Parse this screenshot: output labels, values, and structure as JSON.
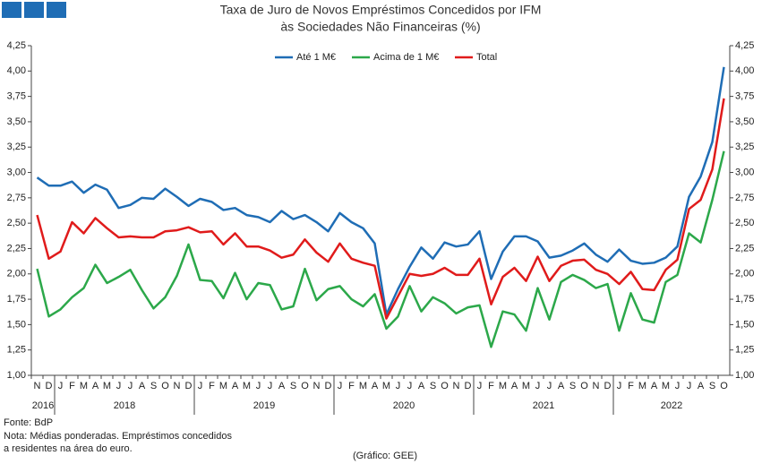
{
  "chart_data": {
    "type": "line",
    "title": "Taxa de Juro de Novos Empréstimos Concedidos por IFM",
    "subtitle": "às Sociedades Não Financeiras (%)",
    "categories": [
      "N",
      "D",
      "J",
      "F",
      "M",
      "A",
      "M",
      "J",
      "J",
      "A",
      "S",
      "O",
      "N",
      "D",
      "J",
      "F",
      "M",
      "A",
      "M",
      "J",
      "J",
      "A",
      "S",
      "O",
      "N",
      "D",
      "J",
      "F",
      "M",
      "A",
      "M",
      "J",
      "J",
      "A",
      "S",
      "O",
      "N",
      "D",
      "J",
      "F",
      "M",
      "A",
      "M",
      "J",
      "J",
      "A",
      "S",
      "O",
      "N",
      "D",
      "J",
      "F",
      "M",
      "A",
      "M",
      "J",
      "J",
      "A",
      "S",
      "O"
    ],
    "years": [
      "2016",
      "2018",
      "2019",
      "2020",
      "2021",
      "2022"
    ],
    "series": [
      {
        "name": "Até 1 M€",
        "color": "#1f6db5",
        "values": [
          2.95,
          2.87,
          2.87,
          2.91,
          2.8,
          2.88,
          2.83,
          2.65,
          2.68,
          2.75,
          2.74,
          2.84,
          2.76,
          2.67,
          2.74,
          2.71,
          2.63,
          2.65,
          2.58,
          2.56,
          2.51,
          2.62,
          2.54,
          2.58,
          2.51,
          2.42,
          2.6,
          2.51,
          2.45,
          2.3,
          1.6,
          1.85,
          2.07,
          2.26,
          2.15,
          2.31,
          2.27,
          2.29,
          2.42,
          1.95,
          2.22,
          2.37,
          2.37,
          2.32,
          2.16,
          2.18,
          2.23,
          2.3,
          2.19,
          2.12,
          2.24,
          2.13,
          2.1,
          2.11,
          2.16,
          2.27,
          2.76,
          2.96,
          3.3,
          4.04
        ]
      },
      {
        "name": "Acima de 1 M€",
        "color": "#2ca84a",
        "values": [
          2.05,
          1.58,
          1.65,
          1.77,
          1.86,
          2.09,
          1.91,
          1.97,
          2.04,
          1.84,
          1.66,
          1.77,
          1.98,
          2.29,
          1.94,
          1.93,
          1.76,
          2.01,
          1.75,
          1.91,
          1.89,
          1.65,
          1.68,
          2.05,
          1.74,
          1.85,
          1.88,
          1.75,
          1.68,
          1.8,
          1.46,
          1.58,
          1.88,
          1.63,
          1.77,
          1.71,
          1.61,
          1.67,
          1.69,
          1.28,
          1.63,
          1.6,
          1.44,
          1.86,
          1.55,
          1.92,
          1.99,
          1.94,
          1.86,
          1.9,
          1.44,
          1.81,
          1.55,
          1.52,
          1.92,
          1.99,
          2.4,
          2.31,
          2.73,
          3.21
        ]
      },
      {
        "name": "Total",
        "color": "#e01b1b",
        "values": [
          2.58,
          2.15,
          2.22,
          2.51,
          2.4,
          2.55,
          2.45,
          2.36,
          2.37,
          2.36,
          2.36,
          2.42,
          2.43,
          2.46,
          2.41,
          2.42,
          2.29,
          2.4,
          2.27,
          2.27,
          2.23,
          2.16,
          2.19,
          2.34,
          2.21,
          2.12,
          2.3,
          2.15,
          2.11,
          2.08,
          1.56,
          1.78,
          2.0,
          1.98,
          2.0,
          2.06,
          1.99,
          1.99,
          2.15,
          1.7,
          1.97,
          2.06,
          1.93,
          2.17,
          1.93,
          2.08,
          2.13,
          2.14,
          2.04,
          2.0,
          1.9,
          2.02,
          1.85,
          1.84,
          2.04,
          2.14,
          2.64,
          2.73,
          3.03,
          3.73
        ]
      }
    ],
    "ylim": [
      1,
      4.25
    ],
    "yticks": [
      {
        "value": 1,
        "label": "1,00"
      },
      {
        "value": 1.25,
        "label": "1,25"
      },
      {
        "value": 1.5,
        "label": "1,50"
      },
      {
        "value": 1.75,
        "label": "1,75"
      },
      {
        "value": 2,
        "label": "2,00"
      },
      {
        "value": 2.25,
        "label": "2,25"
      },
      {
        "value": 2.5,
        "label": "2,50"
      },
      {
        "value": 2.75,
        "label": "2,75"
      },
      {
        "value": 3,
        "label": "3,00"
      },
      {
        "value": 3.25,
        "label": "3,25"
      },
      {
        "value": 3.5,
        "label": "3,50"
      },
      {
        "value": 3.75,
        "label": "3,75"
      },
      {
        "value": 4,
        "label": "4,00"
      },
      {
        "value": 4.25,
        "label": "4,25"
      }
    ],
    "legend": "top",
    "notes": [
      "Fonte: BdP",
      "Nota: Médias ponderadas. Empréstimos concedidos",
      "a residentes na área do euro."
    ],
    "credit": "(Gráfico: GEE)"
  }
}
